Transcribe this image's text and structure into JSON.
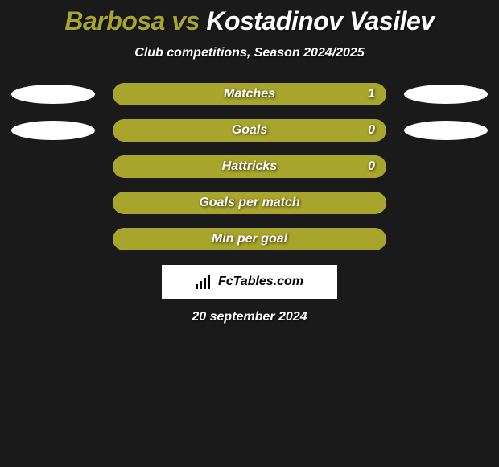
{
  "title": {
    "left": "Barbosa",
    "vs": "vs",
    "right": "Kostadinov Vasilev",
    "left_color": "#a8a52c",
    "right_color": "#ffffff"
  },
  "subtitle": "Club competitions, Season 2024/2025",
  "bar_color": "#a8a52c",
  "ellipse_color": "#ffffff",
  "background_color": "#1a1a1a",
  "stats": [
    {
      "label": "Matches",
      "value_right": "1",
      "show_left_ellipse": true,
      "show_right_ellipse": true
    },
    {
      "label": "Goals",
      "value_right": "0",
      "show_left_ellipse": true,
      "show_right_ellipse": true
    },
    {
      "label": "Hattricks",
      "value_right": "0",
      "show_left_ellipse": false,
      "show_right_ellipse": false
    },
    {
      "label": "Goals per match",
      "value_right": "",
      "show_left_ellipse": false,
      "show_right_ellipse": false
    },
    {
      "label": "Min per goal",
      "value_right": "",
      "show_left_ellipse": false,
      "show_right_ellipse": false
    }
  ],
  "attribution": "FcTables.com",
  "date": "20 september 2024"
}
